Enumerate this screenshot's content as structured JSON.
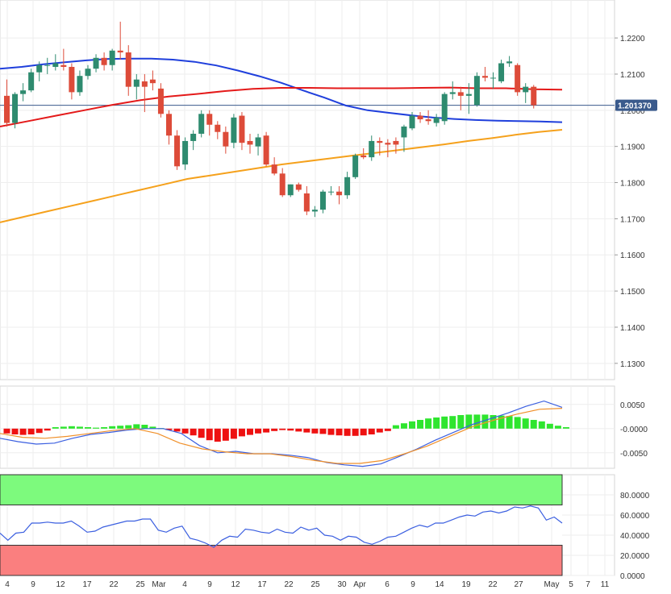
{
  "chart_data": [
    {
      "type": "candlestick",
      "title": "",
      "xlabel": "",
      "ylabel": "",
      "ylim": [
        1.1255,
        1.2305
      ],
      "y_ticks": [
        "1.2200",
        "1.2100",
        "1.2000",
        "1.1900",
        "1.1800",
        "1.1700",
        "1.1600",
        "1.1500",
        "1.1400",
        "1.1300"
      ],
      "x_ticks": [
        "4",
        "9",
        "12",
        "17",
        "22",
        "25",
        "Mar",
        "4",
        "9",
        "12",
        "17",
        "22",
        "25",
        "30",
        "Apr",
        "6",
        "9",
        "14",
        "19",
        "22",
        "27",
        "May",
        "5",
        "7",
        "11"
      ],
      "last_price_label": "1.201370",
      "last_price": 1.20137,
      "grid": true,
      "colors": {
        "up": "#2e8b6f",
        "down": "#dd4b39",
        "sma_fast": "#1f3fdc",
        "sma_mid": "#e41a1a",
        "sma_slow": "#f5a11c",
        "price_tag": "#3a5a8c"
      },
      "candles": [
        [
          1.204,
          1.2085,
          1.1955,
          1.1965
        ],
        [
          1.1965,
          1.205,
          1.195,
          1.2045
        ],
        [
          1.2045,
          1.2075,
          1.2025,
          1.2055
        ],
        [
          1.2055,
          1.2115,
          1.205,
          1.2105
        ],
        [
          1.2105,
          1.2135,
          1.208,
          1.2125
        ],
        [
          1.2125,
          1.2145,
          1.21,
          1.2125
        ],
        [
          1.212,
          1.2155,
          1.211,
          1.213
        ],
        [
          1.2125,
          1.217,
          1.211,
          1.212
        ],
        [
          1.212,
          1.213,
          1.203,
          1.205
        ],
        [
          1.205,
          1.211,
          1.204,
          1.2095
        ],
        [
          1.2095,
          1.2125,
          1.2085,
          1.2115
        ],
        [
          1.2115,
          1.2155,
          1.2105,
          1.2145
        ],
        [
          1.2145,
          1.216,
          1.211,
          1.2125
        ],
        [
          1.2125,
          1.217,
          1.211,
          1.2165
        ],
        [
          1.2165,
          1.2245,
          1.214,
          1.216
        ],
        [
          1.216,
          1.218,
          1.204,
          1.2065
        ],
        [
          1.2065,
          1.21,
          1.203,
          1.2085
        ],
        [
          1.208,
          1.21,
          1.1995,
          1.2065
        ],
        [
          1.2085,
          1.211,
          1.2055,
          1.2075
        ],
        [
          1.206,
          1.2075,
          1.198,
          1.199
        ],
        [
          1.199,
          1.2,
          1.1905,
          1.193
        ],
        [
          1.193,
          1.1945,
          1.1835,
          1.1845
        ],
        [
          1.185,
          1.1925,
          1.1835,
          1.1915
        ],
        [
          1.1915,
          1.1945,
          1.189,
          1.1935
        ],
        [
          1.1935,
          1.2,
          1.1925,
          1.199
        ],
        [
          1.199,
          1.2,
          1.193,
          1.196
        ],
        [
          1.196,
          1.197,
          1.192,
          1.194
        ],
        [
          1.194,
          1.1955,
          1.188,
          1.19
        ],
        [
          1.191,
          1.199,
          1.1895,
          1.198
        ],
        [
          1.1985,
          1.1995,
          1.189,
          1.191
        ],
        [
          1.1915,
          1.1935,
          1.188,
          1.1905
        ],
        [
          1.19,
          1.1935,
          1.1875,
          1.1925
        ],
        [
          1.193,
          1.194,
          1.1845,
          1.185
        ],
        [
          1.185,
          1.187,
          1.182,
          1.1825
        ],
        [
          1.1825,
          1.184,
          1.176,
          1.1765
        ],
        [
          1.1765,
          1.1795,
          1.176,
          1.1795
        ],
        [
          1.1795,
          1.18,
          1.1775,
          1.178
        ],
        [
          1.177,
          1.179,
          1.171,
          1.172
        ],
        [
          1.172,
          1.1735,
          1.1705,
          1.1725
        ],
        [
          1.1725,
          1.178,
          1.1715,
          1.1775
        ],
        [
          1.1775,
          1.179,
          1.1765,
          1.1775
        ],
        [
          1.1775,
          1.179,
          1.174,
          1.1765
        ],
        [
          1.1765,
          1.183,
          1.1755,
          1.1815
        ],
        [
          1.1815,
          1.188,
          1.181,
          1.1875
        ],
        [
          1.1875,
          1.1895,
          1.1865,
          1.187
        ],
        [
          1.187,
          1.193,
          1.186,
          1.1915
        ],
        [
          1.1915,
          1.1925,
          1.1875,
          1.191
        ],
        [
          1.191,
          1.192,
          1.187,
          1.1905
        ],
        [
          1.1915,
          1.1925,
          1.188,
          1.1905
        ],
        [
          1.1925,
          1.196,
          1.1885,
          1.1955
        ],
        [
          1.195,
          1.1995,
          1.1945,
          1.1985
        ],
        [
          1.1985,
          1.1995,
          1.1965,
          1.1975
        ],
        [
          1.1975,
          1.2,
          1.196,
          1.197
        ],
        [
          1.1965,
          1.199,
          1.1955,
          1.198
        ],
        [
          1.197,
          1.205,
          1.196,
          1.2045
        ],
        [
          1.2045,
          1.208,
          1.203,
          1.205
        ],
        [
          1.205,
          1.2065,
          1.2,
          1.204
        ],
        [
          1.204,
          1.2075,
          1.199,
          1.2045
        ],
        [
          1.2015,
          1.2105,
          1.201,
          1.2095
        ],
        [
          1.2095,
          1.212,
          1.208,
          1.209
        ],
        [
          1.209,
          1.2105,
          1.206,
          1.209
        ],
        [
          1.208,
          1.214,
          1.2075,
          1.213
        ],
        [
          1.213,
          1.215,
          1.212,
          1.2135
        ],
        [
          1.2125,
          1.213,
          1.204,
          1.205
        ],
        [
          1.205,
          1.2075,
          1.202,
          1.2065
        ],
        [
          1.2065,
          1.207,
          1.2005,
          1.2014
        ]
      ],
      "series": [
        {
          "values": [
            1.2115,
            1.212,
            1.2127,
            1.2133,
            1.2138,
            1.2142,
            1.2143,
            1.2143,
            1.214,
            1.2134,
            1.2124,
            1.211,
            1.2094,
            1.2076,
            1.2055,
            1.2035,
            1.2013,
            1.2,
            1.1993,
            1.1986,
            1.198,
            1.1976,
            1.1973,
            1.1971,
            1.197,
            1.1969,
            1.1967
          ]
        },
        {
          "values": [
            1.1955,
            1.197,
            1.1985,
            1.2,
            1.2015,
            1.2028,
            1.2038,
            1.2045,
            1.2053,
            1.2059,
            1.2062,
            1.2062,
            1.2061,
            1.2061,
            1.2061,
            1.2062,
            1.2063,
            1.2061,
            1.2061,
            1.2058,
            1.2057
          ]
        },
        {
          "values": [
            1.169,
            1.1705,
            1.172,
            1.1735,
            1.175,
            1.1765,
            1.178,
            1.1795,
            1.181,
            1.182,
            1.183,
            1.184,
            1.185,
            1.1858,
            1.1866,
            1.1874,
            1.1882,
            1.189,
            1.1898,
            1.1906,
            1.1915,
            1.1923,
            1.1932,
            1.194,
            1.1946
          ]
        }
      ]
    },
    {
      "type": "bar",
      "subtype": "macd",
      "ylim": [
        -0.0082,
        0.0088
      ],
      "y_ticks": [
        "0.0050",
        "-0.0000",
        "-0.0050"
      ],
      "histogram": [
        -0.001,
        -0.0012,
        -0.0013,
        -0.0012,
        -0.0009,
        -0.0004,
        0.0003,
        0.0004,
        0.0005,
        0.0004,
        0.0003,
        0.0002,
        0.0003,
        0.0005,
        0.0006,
        0.0007,
        0.0009,
        0.0008,
        0.0004,
        0.0001,
        -0.0003,
        -0.0006,
        -0.001,
        -0.0014,
        -0.0019,
        -0.0024,
        -0.0027,
        -0.0025,
        -0.0021,
        -0.0016,
        -0.0013,
        -0.001,
        -0.0008,
        -0.0005,
        -0.0003,
        -0.0004,
        -0.0006,
        -0.0008,
        -0.001,
        -0.0011,
        -0.0013,
        -0.0014,
        -0.0015,
        -0.0015,
        -0.0014,
        -0.0012,
        -0.0008,
        -0.0005,
        0.0007,
        0.0011,
        0.0015,
        0.0018,
        0.0021,
        0.0023,
        0.0025,
        0.0026,
        0.0028,
        0.0029,
        0.0029,
        0.0029,
        0.0028,
        0.0027,
        0.0026,
        0.0024,
        0.0021,
        0.0018,
        0.0015,
        0.001,
        0.0006,
        0.0003
      ],
      "series": [
        {
          "values": [
            -0.002,
            -0.0027,
            -0.0032,
            -0.003,
            -0.002,
            -0.0012,
            -0.0008,
            -0.0003,
            0.0,
            0.0,
            -0.001,
            -0.0035,
            -0.005,
            -0.0047,
            -0.0052,
            -0.0052,
            -0.0055,
            -0.006,
            -0.007,
            -0.0075,
            -0.0078,
            -0.0073,
            -0.0058,
            -0.0042,
            -0.0024,
            -0.0008,
            0.0008,
            0.002,
            0.0032,
            0.0046,
            0.0057,
            0.0044
          ]
        },
        {
          "values": [
            -0.001,
            -0.0018,
            -0.002,
            -0.0016,
            -0.001,
            -0.0004,
            0.0,
            -0.001,
            -0.003,
            -0.0042,
            -0.0048,
            -0.0052,
            -0.0052,
            -0.0058,
            -0.0066,
            -0.0072,
            -0.0072,
            -0.0066,
            -0.0052,
            -0.0036,
            -0.0016,
            0.0004,
            0.0018,
            0.003,
            0.004,
            0.0042
          ]
        }
      ]
    },
    {
      "type": "line",
      "subtype": "rsi",
      "ylim": [
        0,
        100
      ],
      "y_ticks": [
        "80.0000",
        "60.0000",
        "40.0000",
        "20.0000",
        "0.0000"
      ],
      "zones": [
        {
          "from": 70,
          "to": 100,
          "color": "#7dfa7d"
        },
        {
          "from": 0,
          "to": 30,
          "color": "#fa7f7f"
        }
      ],
      "values": [
        42,
        35,
        42,
        43,
        52,
        52,
        53,
        52,
        52,
        54,
        49,
        43,
        44,
        48,
        50,
        52,
        54,
        54,
        56,
        56,
        45,
        43,
        47,
        49,
        37,
        35,
        32,
        28,
        35,
        39,
        38,
        46,
        45,
        43,
        42,
        46,
        43,
        42,
        48,
        45,
        47,
        40,
        39,
        35,
        39,
        38,
        33,
        31,
        34,
        38,
        39,
        43,
        47,
        50,
        48,
        52,
        52,
        55,
        58,
        60,
        59,
        63,
        64,
        62,
        64,
        68,
        67,
        69,
        67,
        55,
        58,
        52
      ]
    }
  ]
}
